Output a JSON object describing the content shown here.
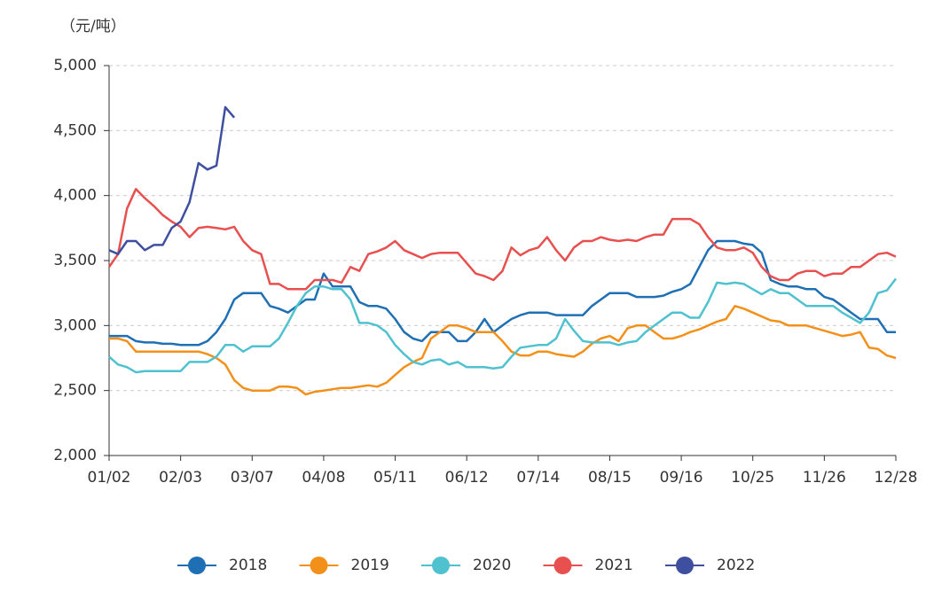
{
  "chart_data": {
    "type": "line",
    "y_label": "（元/吨）",
    "categories": [
      "01/02",
      null,
      null,
      null,
      null,
      null,
      null,
      null,
      "02/03",
      null,
      null,
      null,
      null,
      null,
      null,
      null,
      "03/07",
      null,
      null,
      null,
      null,
      null,
      null,
      null,
      "04/08",
      null,
      null,
      null,
      null,
      null,
      null,
      null,
      "05/11",
      null,
      null,
      null,
      null,
      null,
      null,
      null,
      "06/12",
      null,
      null,
      null,
      null,
      null,
      null,
      null,
      "07/14",
      null,
      null,
      null,
      null,
      null,
      null,
      null,
      "08/15",
      null,
      null,
      null,
      null,
      null,
      null,
      null,
      "09/16",
      null,
      null,
      null,
      null,
      null,
      null,
      null,
      "10/25",
      null,
      null,
      null,
      null,
      null,
      null,
      null,
      "11/26",
      null,
      null,
      null,
      null,
      null,
      null,
      null,
      "12/28"
    ],
    "ylim": [
      2000,
      5000
    ],
    "yticks": [
      {
        "value": 2000,
        "label": "2,000"
      },
      {
        "value": 2500,
        "label": "2,500"
      },
      {
        "value": 3000,
        "label": "3,000"
      },
      {
        "value": 3500,
        "label": "3,500"
      },
      {
        "value": 4000,
        "label": "4,000"
      },
      {
        "value": 4500,
        "label": "4,500"
      },
      {
        "value": 5000,
        "label": "5,000"
      }
    ],
    "grid": true,
    "legend": "bottom",
    "series": [
      {
        "name": "2018",
        "color": "#1f6fb4",
        "values": [
          2920,
          2920,
          2920,
          2880,
          2870,
          2870,
          2860,
          2860,
          2850,
          2850,
          2850,
          2880,
          2950,
          3050,
          3200,
          3250,
          3250,
          3250,
          3150,
          3130,
          3100,
          3150,
          3200,
          3200,
          3400,
          3300,
          3300,
          3300,
          3180,
          3150,
          3150,
          3130,
          3050,
          2950,
          2900,
          2880,
          2950,
          2950,
          2950,
          2880,
          2880,
          2950,
          3050,
          2950,
          3000,
          3050,
          3080,
          3100,
          3100,
          3100,
          3080,
          3080,
          3080,
          3080,
          3150,
          3200,
          3250,
          3250,
          3250,
          3220,
          3220,
          3220,
          3230,
          3260,
          3280,
          3320,
          3450,
          3580,
          3650,
          3650,
          3650,
          3630,
          3620,
          3560,
          3350,
          3320,
          3300,
          3300,
          3280,
          3280,
          3220,
          3200,
          3150,
          3100,
          3050,
          3050,
          3050,
          2950,
          2950
        ]
      },
      {
        "name": "2019",
        "color": "#f39019",
        "values": [
          2900,
          2900,
          2880,
          2800,
          2800,
          2800,
          2800,
          2800,
          2800,
          2800,
          2800,
          2780,
          2750,
          2700,
          2580,
          2520,
          2500,
          2500,
          2500,
          2530,
          2530,
          2520,
          2470,
          2490,
          2500,
          2510,
          2520,
          2520,
          2530,
          2540,
          2530,
          2560,
          2620,
          2680,
          2720,
          2750,
          2900,
          2950,
          3000,
          3000,
          2980,
          2950,
          2950,
          2950,
          2880,
          2800,
          2770,
          2770,
          2800,
          2800,
          2780,
          2770,
          2760,
          2800,
          2860,
          2900,
          2920,
          2880,
          2980,
          3000,
          3000,
          2950,
          2900,
          2900,
          2920,
          2950,
          2970,
          3000,
          3030,
          3050,
          3150,
          3130,
          3100,
          3070,
          3040,
          3030,
          3000,
          3000,
          3000,
          2980,
          2960,
          2940,
          2920,
          2930,
          2950,
          2830,
          2820,
          2770,
          2750
        ]
      },
      {
        "name": "2020",
        "color": "#4fc1cf",
        "values": [
          2760,
          2700,
          2680,
          2640,
          2650,
          2650,
          2650,
          2650,
          2650,
          2720,
          2720,
          2720,
          2760,
          2850,
          2850,
          2800,
          2840,
          2840,
          2840,
          2900,
          3020,
          3150,
          3250,
          3300,
          3300,
          3280,
          3280,
          3200,
          3020,
          3020,
          3000,
          2950,
          2850,
          2780,
          2720,
          2700,
          2730,
          2740,
          2700,
          2720,
          2680,
          2680,
          2680,
          2670,
          2680,
          2760,
          2830,
          2840,
          2850,
          2850,
          2900,
          3050,
          2960,
          2880,
          2870,
          2870,
          2870,
          2850,
          2870,
          2880,
          2950,
          3000,
          3050,
          3100,
          3100,
          3060,
          3060,
          3180,
          3330,
          3320,
          3330,
          3320,
          3280,
          3240,
          3280,
          3250,
          3250,
          3200,
          3150,
          3150,
          3150,
          3150,
          3100,
          3060,
          3020,
          3100,
          3250,
          3270,
          3360
        ]
      },
      {
        "name": "2021",
        "color": "#e8504f",
        "values": [
          3450,
          3550,
          3900,
          4050,
          3980,
          3920,
          3850,
          3800,
          3760,
          3680,
          3750,
          3760,
          3750,
          3740,
          3760,
          3650,
          3580,
          3550,
          3320,
          3320,
          3280,
          3280,
          3280,
          3350,
          3350,
          3350,
          3330,
          3450,
          3420,
          3550,
          3570,
          3600,
          3650,
          3580,
          3550,
          3520,
          3550,
          3560,
          3560,
          3560,
          3480,
          3400,
          3380,
          3350,
          3420,
          3600,
          3540,
          3580,
          3600,
          3680,
          3580,
          3500,
          3600,
          3650,
          3650,
          3680,
          3660,
          3650,
          3660,
          3650,
          3680,
          3700,
          3700,
          3820,
          3820,
          3820,
          3780,
          3680,
          3600,
          3580,
          3580,
          3600,
          3560,
          3450,
          3380,
          3350,
          3350,
          3400,
          3420,
          3420,
          3380,
          3400,
          3400,
          3450,
          3450,
          3500,
          3550,
          3560,
          3530
        ]
      },
      {
        "name": "2022",
        "color": "#3f4fa0",
        "values": [
          3580,
          3550,
          3650,
          3650,
          3580,
          3620,
          3620,
          3750,
          3800,
          3950,
          4250,
          4200,
          4230,
          4680,
          4600,
          null,
          null,
          null,
          null,
          null,
          null,
          null,
          null,
          null,
          null,
          null,
          null,
          null,
          null,
          null,
          null,
          null,
          null,
          null,
          null,
          null,
          null,
          null,
          null,
          null,
          null,
          null,
          null,
          null,
          null,
          null,
          null,
          null,
          null,
          null,
          null,
          null,
          null,
          null,
          null,
          null,
          null,
          null,
          null,
          null,
          null,
          null,
          null,
          null,
          null,
          null,
          null,
          null,
          null,
          null,
          null,
          null,
          null,
          null,
          null,
          null,
          null,
          null,
          null,
          null,
          null,
          null,
          null,
          null,
          null,
          null,
          null,
          null,
          null
        ]
      }
    ]
  }
}
